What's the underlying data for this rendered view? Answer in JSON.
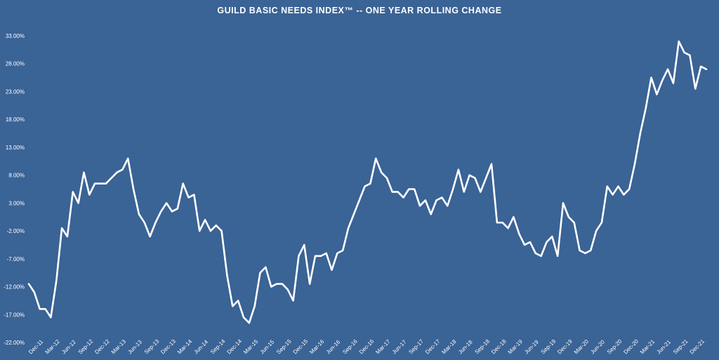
{
  "chart_data": {
    "type": "area",
    "title": "GUILD BASIC NEEDS INDEX™ -- ONE YEAR ROLLING CHANGE",
    "xlabel": "",
    "ylabel": "",
    "ylim": [
      -22,
      35
    ],
    "yticks": [
      "-22.00%",
      "-17.00%",
      "-12.00%",
      "-7.00%",
      "-2.00%",
      "3.00%",
      "8.00%",
      "13.00%",
      "18.00%",
      "23.00%",
      "28.00%",
      "33.00%"
    ],
    "ytick_values": [
      -22,
      -17,
      -12,
      -7,
      -2,
      3,
      8,
      13,
      18,
      23,
      28,
      33
    ],
    "xtick_labels": [
      "Dec-11",
      "Mar-12",
      "Jun-12",
      "Sep-12",
      "Dec-12",
      "Mar-13",
      "Jun-13",
      "Sep-13",
      "Dec-13",
      "Mar-14",
      "Jun-14",
      "Sep-14",
      "Dec-14",
      "Mar-15",
      "Jun-15",
      "Sep-15",
      "Dec-15",
      "Mar-16",
      "Jun-16",
      "Sep-16",
      "Dec-16",
      "Mar-17",
      "Jun-17",
      "Sep-17",
      "Dec-17",
      "Mar-18",
      "Jun-18",
      "Sep-18",
      "Dec-18",
      "Mar-19",
      "Jun-19",
      "Sep-19",
      "Dec-19",
      "Mar-20",
      "Jun-20",
      "Sep-20",
      "Dec-20",
      "Mar-21",
      "Jun-21",
      "Sep-21",
      "Dec-21"
    ],
    "grid": false,
    "legend": "none",
    "colors": {
      "background": "#3a6396",
      "line": "#ffffff",
      "fill_lines": "#ffffff"
    },
    "series": [
      {
        "x_start": "Dec-11",
        "frequency": "monthly",
        "values": [
          -11.5,
          -13.0,
          -16.0,
          -16.0,
          -17.5,
          -11.0,
          -1.5,
          -3.0,
          5.0,
          3.0,
          8.5,
          4.5,
          6.5,
          6.5,
          6.5,
          7.5,
          8.5,
          9.0,
          11.0,
          5.5,
          1.0,
          -0.5,
          -3.0,
          -0.5,
          1.5,
          3.0,
          1.5,
          2.0,
          6.5,
          4.0,
          4.5,
          -2.0,
          0.0,
          -2.0,
          -1.0,
          -2.0,
          -10.0,
          -15.5,
          -14.5,
          -17.5,
          -18.5,
          -15.5,
          -9.5,
          -8.5,
          -12.0,
          -11.5,
          -11.5,
          -12.5,
          -14.5,
          -6.5,
          -4.5,
          -11.5,
          -6.5,
          -6.5,
          -6.0,
          -9.0,
          -6.0,
          -5.5,
          -1.5,
          1.0,
          3.5,
          6.0,
          6.5,
          11.0,
          8.5,
          7.5,
          5.0,
          5.0,
          4.0,
          5.5,
          5.5,
          2.5,
          3.5,
          1.0,
          3.5,
          4.0,
          2.5,
          5.5,
          9.0,
          5.0,
          8.0,
          7.5,
          5.0,
          7.5,
          10.0,
          -0.5,
          -0.5,
          -1.5,
          0.5,
          -2.5,
          -4.5,
          -4.0,
          -6.0,
          -6.5,
          -4.0,
          -3.0,
          -6.5,
          3.0,
          0.5,
          -0.5,
          -5.5,
          -6.0,
          -5.5,
          -2.0,
          -0.5,
          6.0,
          4.5,
          6.0,
          4.5,
          5.5,
          10.0,
          15.5,
          20.0,
          25.5,
          22.5,
          25.0,
          27.0,
          24.5,
          32.0,
          30.0,
          29.5,
          23.5,
          27.5,
          27.0
        ]
      }
    ]
  }
}
